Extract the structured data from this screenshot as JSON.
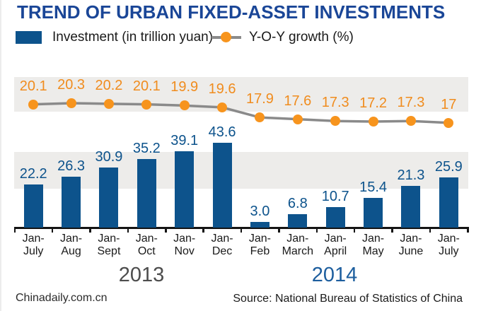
{
  "title": "TREND OF URBAN FIXED-ASSET INVESTMENTS",
  "legend": {
    "investment": "Investment (in trillion yuan)",
    "growth": "Y-O-Y growth (%)"
  },
  "chart_data": {
    "type": "bar",
    "title": "TREND OF URBAN FIXED-ASSET INVESTMENTS",
    "categories": [
      "Jan-\nJuly",
      "Jan-\nAug",
      "Jan-\nSept",
      "Jan-\nOct",
      "Jan-\nNov",
      "Jan-\nDec",
      "Jan-\nFeb",
      "Jan-\nMarch",
      "Jan-\nApril",
      "Jan-\nMay",
      "Jan-\nJune",
      "Jan-\nJuly"
    ],
    "series": [
      {
        "name": "Investment (in trillion yuan)",
        "type": "bar",
        "values": [
          22.2,
          26.3,
          30.9,
          35.2,
          39.1,
          43.6,
          3.0,
          6.8,
          10.7,
          15.4,
          21.3,
          25.9
        ],
        "labels": [
          "22.2",
          "26.3",
          "30.9",
          "35.2",
          "39.1",
          "43.6",
          "3.0",
          "6.8",
          "10.7",
          "15.4",
          "21.3",
          "25.9"
        ]
      },
      {
        "name": "Y-O-Y growth (%)",
        "type": "line",
        "values": [
          20.1,
          20.3,
          20.2,
          20.1,
          19.9,
          19.6,
          17.9,
          17.6,
          17.3,
          17.2,
          17.3,
          17
        ],
        "labels": [
          "20.1",
          "20.3",
          "20.2",
          "20.1",
          "19.9",
          "19.6",
          "17.9",
          "17.6",
          "17.3",
          "17.2",
          "17.3",
          "17"
        ]
      }
    ],
    "group_labels": [
      {
        "label": "2013",
        "columns": [
          0,
          5
        ]
      },
      {
        "label": "2014",
        "columns": [
          6,
          11
        ]
      }
    ],
    "ylim_bar": [
      0,
      43.6
    ],
    "grid": false,
    "legend_position": "top"
  },
  "footer": {
    "branding": "Chinadaily.com.cn",
    "source": "Source: National Bureau of Statistics of China"
  },
  "colors": {
    "bar": "#0d538c",
    "title": "#1a4697",
    "dot": "#f7941d",
    "growth_label": "#f08c1e",
    "line": "#8a8a8a",
    "band": "#edecea",
    "year_2013": "#4d4d4d",
    "year_2014": "#1d5e9e"
  }
}
